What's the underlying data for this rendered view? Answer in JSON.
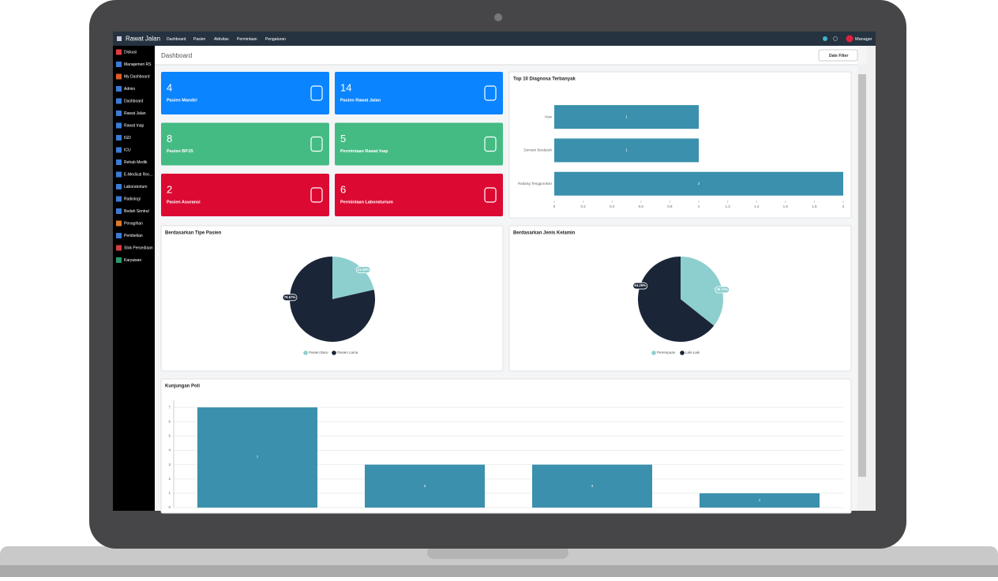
{
  "app": {
    "title": "Rawat Jalan",
    "menu": [
      "Dashboard",
      "Pasien",
      "Aktivitas",
      "Permintaan",
      "Pengaturan"
    ],
    "user": "Manager"
  },
  "sidebar": [
    "Diskusi",
    "Manajemen RS",
    "My Dashboard",
    "Admin",
    "Dashboard",
    "Rawat Jalan",
    "Rawat Inap",
    "IGD",
    "ICU",
    "Rehab Medik",
    "E-Medical Rec...",
    "Laboratorium",
    "Radiologi",
    "Bedah Sentral",
    "Penagihan",
    "Pembelian",
    "Stok Persediaan",
    "Karyawan"
  ],
  "page": {
    "title": "Dashboard",
    "filter": "Date Filter"
  },
  "cards": [
    {
      "value": 4,
      "label": "Pasien Mandiri",
      "color": "#0a84ff"
    },
    {
      "value": 14,
      "label": "Pasien Rawat Jalan",
      "color": "#0a84ff"
    },
    {
      "value": 8,
      "label": "Pasien BPJS",
      "color": "#45bb84"
    },
    {
      "value": 5,
      "label": "Permintaan Rawat Inap",
      "color": "#45bb84"
    },
    {
      "value": 2,
      "label": "Pasien Asuransi",
      "color": "#dc0a33"
    },
    {
      "value": 6,
      "label": "Permintaan Laboraturium",
      "color": "#dc0a33"
    }
  ],
  "chart_data": [
    {
      "type": "hbar",
      "title": "Top 10 Diagnosa Terbanyak",
      "categories": [
        "Nsw",
        "Demam Berdarah",
        "Radang Tenggorokan"
      ],
      "values": [
        1,
        1,
        2
      ],
      "color": "#3a90ad",
      "xlim": [
        0,
        2
      ],
      "xticks": [
        0,
        0.2,
        0.4,
        0.6,
        0.8,
        1,
        1.2,
        1.4,
        1.6,
        1.8,
        2
      ]
    },
    {
      "type": "pie",
      "title": "Berdasarkan Tipe Pasien",
      "categories": [
        "Pasien Baru",
        "Pasien Lama"
      ],
      "values": [
        21.43,
        78.57
      ],
      "value_labels": [
        "21.43%",
        "78.57%"
      ],
      "colors": [
        "#8dcfcf",
        "#1b2538"
      ]
    },
    {
      "type": "pie",
      "title": "Berdasarkan Jenis Kelamin",
      "categories": [
        "Perempuan",
        "Laki-Laki"
      ],
      "values": [
        35.71,
        64.29
      ],
      "value_labels": [
        "35.71%",
        "64.29%"
      ],
      "colors": [
        "#8dcfcf",
        "#1b2538"
      ]
    },
    {
      "type": "bar",
      "title": "Kunjungan Poli",
      "categories": [
        null,
        null,
        null,
        null
      ],
      "values": [
        7,
        3,
        3,
        1
      ],
      "color": "#3a90ad",
      "ylim": [
        0,
        7.5
      ],
      "yticks": [
        0,
        1,
        2,
        3,
        4,
        5,
        6,
        7
      ]
    }
  ]
}
